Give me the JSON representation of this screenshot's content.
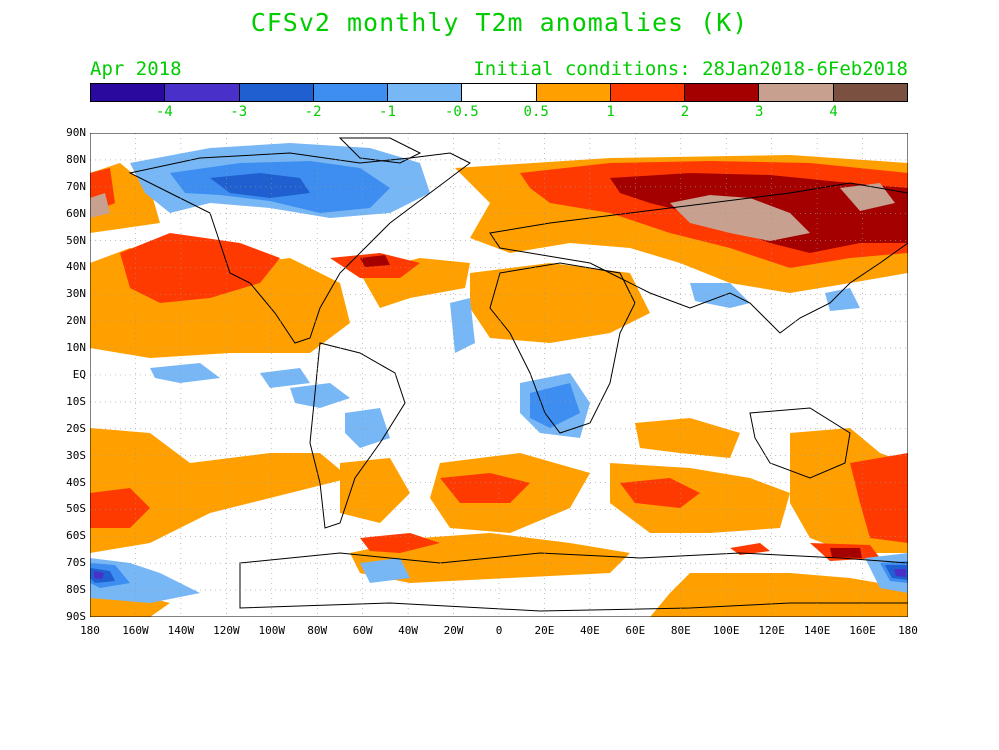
{
  "title": "CFSv2 monthly T2m anomalies (K)",
  "valid_month": "Apr 2018",
  "initial_conditions": "Initial conditions: 28Jan2018-6Feb2018",
  "text_color": "#00cc00",
  "colorbar": {
    "colors": [
      "#2a0a9e",
      "#4830c8",
      "#1f5fd0",
      "#3d8ef0",
      "#78b7f5",
      "#ffffff",
      "#ffa000",
      "#ff3a00",
      "#a50000",
      "#c8a090",
      "#7a5040"
    ],
    "labels": [
      "-4",
      "-3",
      "-2",
      "-1",
      "-0.5",
      "0.5",
      "1",
      "2",
      "3",
      "4"
    ]
  },
  "map": {
    "latitude_labels": [
      "90N",
      "80N",
      "70N",
      "60N",
      "50N",
      "40N",
      "30N",
      "20N",
      "10N",
      "EQ",
      "10S",
      "20S",
      "30S",
      "40S",
      "50S",
      "60S",
      "70S",
      "80S",
      "90S"
    ],
    "longitude_labels": [
      "180",
      "160W",
      "140W",
      "120W",
      "100W",
      "80W",
      "60W",
      "40W",
      "20W",
      "0",
      "20E",
      "40E",
      "60E",
      "80E",
      "100E",
      "120E",
      "140E",
      "160E",
      "180"
    ],
    "gridlines": true,
    "land_outline_color": "#000000"
  }
}
